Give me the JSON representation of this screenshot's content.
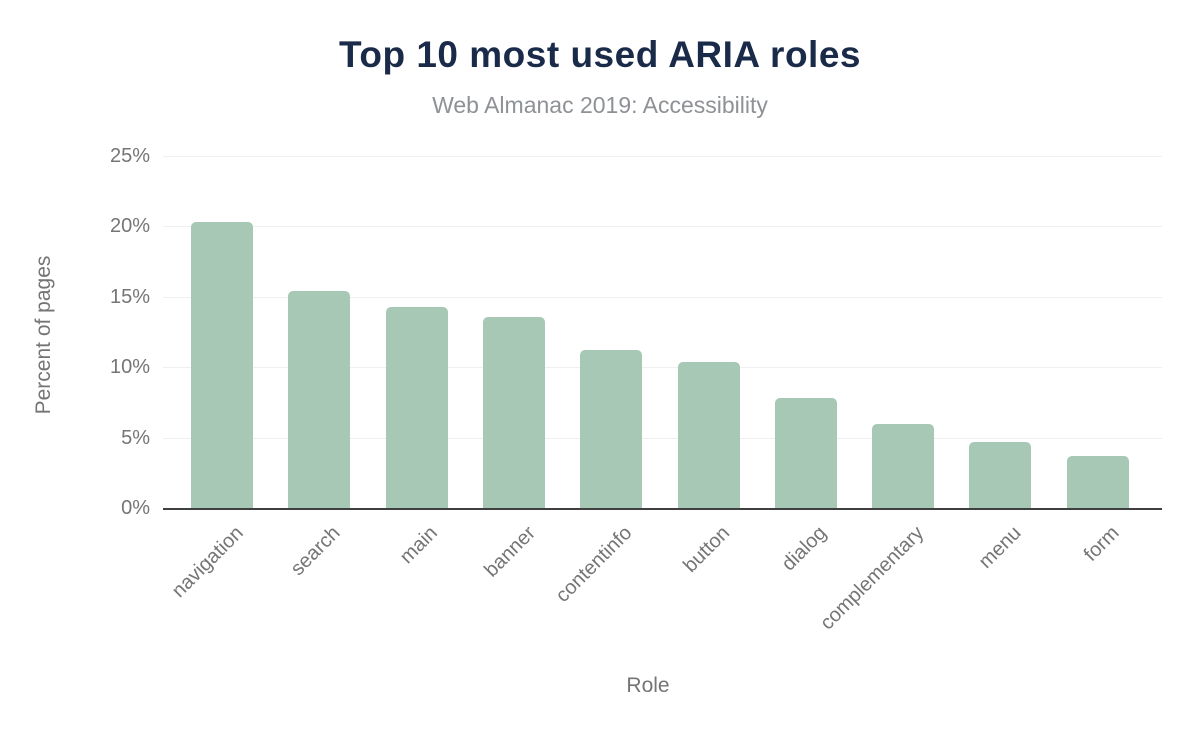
{
  "chart_data": {
    "type": "bar",
    "title": "Top 10 most used ARIA roles",
    "subtitle": "Web Almanac 2019: Accessibility",
    "xlabel": "Role",
    "ylabel": "Percent of pages",
    "categories": [
      "navigation",
      "search",
      "main",
      "banner",
      "contentinfo",
      "button",
      "dialog",
      "complementary",
      "menu",
      "form"
    ],
    "values": [
      20.3,
      15.4,
      14.3,
      13.6,
      11.2,
      10.4,
      7.8,
      6.0,
      4.7,
      3.7
    ],
    "ylim": [
      0,
      25
    ],
    "yticks": [
      0,
      5,
      10,
      15,
      20,
      25
    ],
    "ytick_labels": [
      "0%",
      "5%",
      "10%",
      "15%",
      "20%",
      "25%"
    ],
    "grid": true,
    "legend": "none",
    "colors": {
      "bar": "#a7c8b4",
      "title": "#1a2b49",
      "subtitle": "#8e9195",
      "axis_text": "#757575",
      "gridline": "#efefef",
      "axis_line": "#3f3f3f",
      "background": "#ffffff"
    }
  }
}
